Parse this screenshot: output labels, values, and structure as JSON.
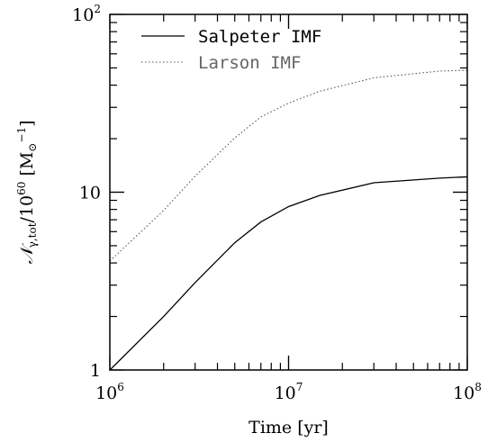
{
  "chart_data": {
    "type": "line",
    "title": "",
    "xlabel": "Time [yr]",
    "ylabel": "𝒩γ,tot/10⁶⁰ [M⊙⁻¹]",
    "ylabel_parts": {
      "n": "𝒩",
      "sub": "γ,tot",
      "mid": "/10",
      "exp": "60",
      "unit_open": " [M",
      "unit_sub": "⊙",
      "unit_sup": "−1",
      "unit_close": "]"
    },
    "x_scale": "log",
    "y_scale": "log",
    "xlim": [
      1000000,
      100000000
    ],
    "ylim": [
      1,
      100
    ],
    "grid": false,
    "legend_position": "top-left",
    "x_tick_labels": [
      {
        "value": 1000000,
        "base": "10",
        "exp": "6"
      },
      {
        "value": 10000000,
        "base": "10",
        "exp": "7"
      },
      {
        "value": 100000000,
        "base": "10",
        "exp": "8"
      }
    ],
    "y_tick_labels": [
      {
        "value": 1,
        "text": "1",
        "base": "",
        "exp": ""
      },
      {
        "value": 10,
        "text": "10",
        "base": "",
        "exp": ""
      },
      {
        "value": 100,
        "text": "",
        "base": "10",
        "exp": "2"
      }
    ],
    "series": [
      {
        "name": "Salpeter IMF",
        "style": "solid",
        "color": "#000000",
        "x": [
          1000000,
          2000000,
          3000000,
          5000000,
          7000000,
          10000000,
          15000000,
          30000000,
          70000000,
          100000000
        ],
        "y": [
          1.0,
          2.0,
          3.1,
          5.2,
          6.8,
          8.3,
          9.6,
          11.3,
          12.0,
          12.2
        ]
      },
      {
        "name": "Larson IMF",
        "style": "dotted",
        "color": "#555555",
        "x": [
          1000000,
          2000000,
          3000000,
          5000000,
          7000000,
          10000000,
          15000000,
          30000000,
          70000000,
          100000000
        ],
        "y": [
          4.1,
          7.9,
          12.3,
          20.2,
          26.5,
          31.7,
          37.0,
          44.0,
          48.0,
          48.5
        ]
      }
    ]
  }
}
